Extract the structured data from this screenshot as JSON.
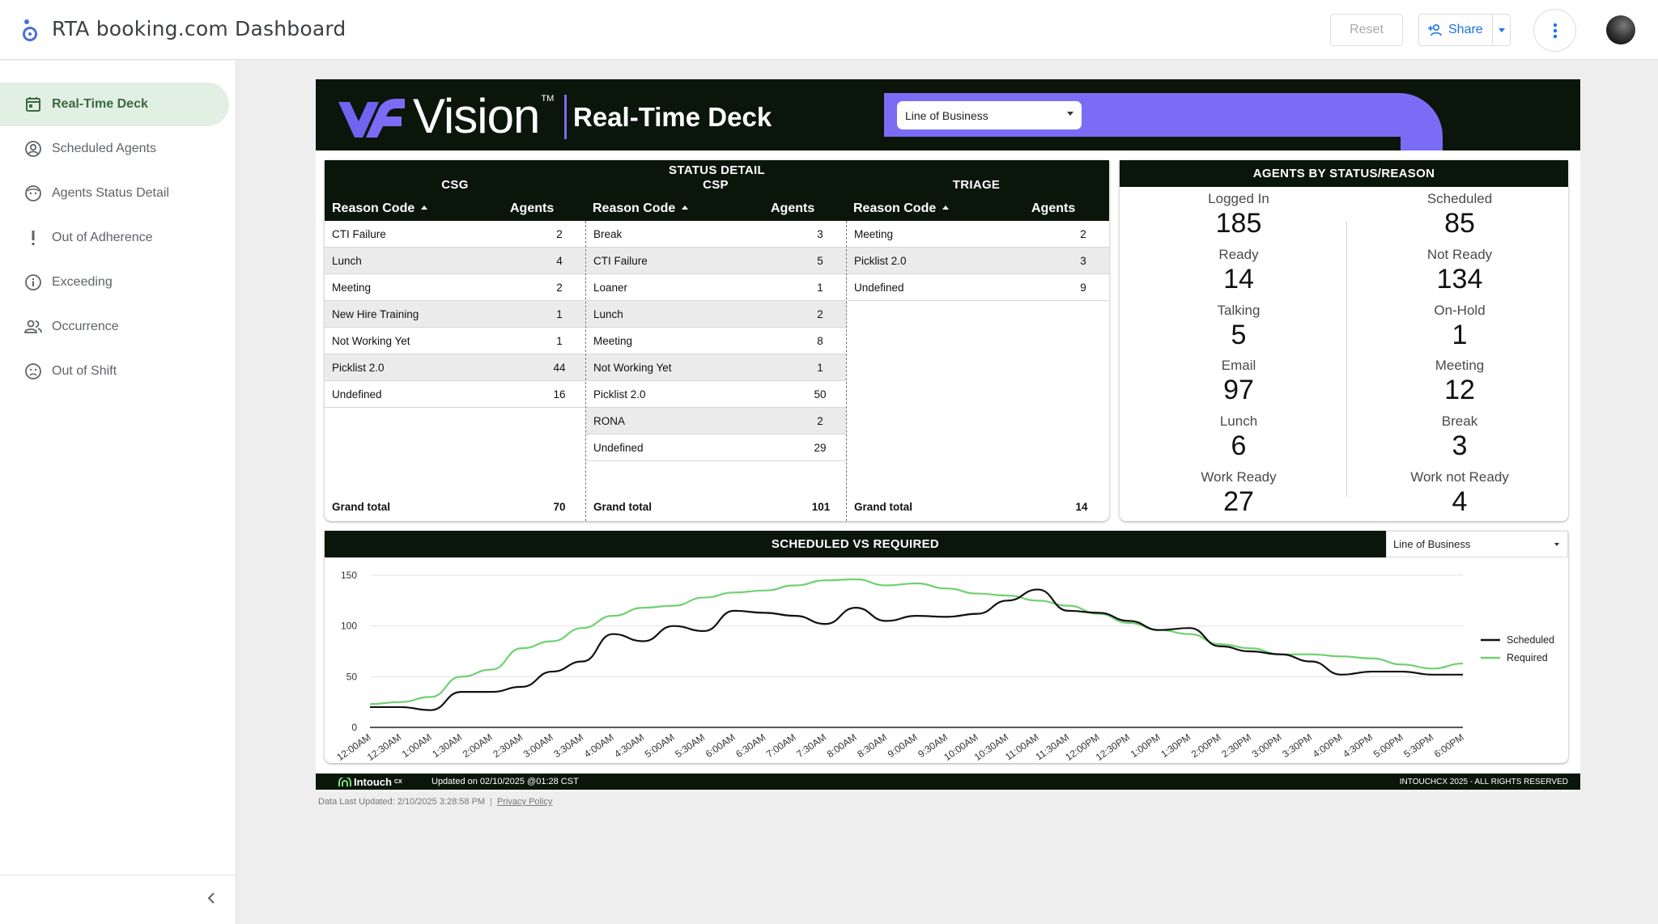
{
  "app": {
    "title": "RTA booking.com Dashboard"
  },
  "toolbar": {
    "reset_label": "Reset",
    "share_label": "Share"
  },
  "colors": {
    "accent_green_bg": "#e2efe3",
    "accent_purple": "#7b6cf6",
    "dark_band": "#0b160b",
    "share_blue": "#1a73e8"
  },
  "sidebar": {
    "items": [
      {
        "label": "Real-Time Deck",
        "icon": "calendar-icon",
        "active": true
      },
      {
        "label": "Scheduled Agents",
        "icon": "account-circle-icon"
      },
      {
        "label": "Agents Status Detail",
        "icon": "face-icon"
      },
      {
        "label": "Out of Adherence",
        "icon": "exclamation-icon"
      },
      {
        "label": "Exceeding",
        "icon": "info-icon"
      },
      {
        "label": "Occurrence",
        "icon": "people-icon"
      },
      {
        "label": "Out of Shift",
        "icon": "sad-face-icon"
      }
    ]
  },
  "report": {
    "brand_name": "Vision",
    "brand_tm": "TM",
    "deck_title": "Real-Time Deck",
    "lob_dropdown": "Line of Business",
    "status_detail": {
      "title": "STATUS DETAIL",
      "reason_header": "Reason Code",
      "agents_header": "Agents",
      "grand_total_label": "Grand total",
      "groups": [
        {
          "name": "CSG",
          "rows": [
            [
              "CTI Failure",
              "2"
            ],
            [
              "Lunch",
              "4"
            ],
            [
              "Meeting",
              "2"
            ],
            [
              "New Hire Training",
              "1"
            ],
            [
              "Not Working Yet",
              "1"
            ],
            [
              "Picklist 2.0",
              "44"
            ],
            [
              "Undefined",
              "16"
            ]
          ],
          "total": "70"
        },
        {
          "name": "CSP",
          "rows": [
            [
              "Break",
              "3"
            ],
            [
              "CTI Failure",
              "5"
            ],
            [
              "Loaner",
              "1"
            ],
            [
              "Lunch",
              "2"
            ],
            [
              "Meeting",
              "8"
            ],
            [
              "Not Working Yet",
              "1"
            ],
            [
              "Picklist 2.0",
              "50"
            ],
            [
              "RONA",
              "2"
            ],
            [
              "Undefined",
              "29"
            ]
          ],
          "total": "101"
        },
        {
          "name": "TRIAGE",
          "rows": [
            [
              "Meeting",
              "2"
            ],
            [
              "Picklist 2.0",
              "3"
            ],
            [
              "Undefined",
              "9"
            ]
          ],
          "total": "14"
        }
      ]
    },
    "agents_by_status": {
      "title": "AGENTS BY STATUS/REASON",
      "left": [
        {
          "label": "Logged In",
          "value": "185"
        },
        {
          "label": "Ready",
          "value": "14"
        },
        {
          "label": "Talking",
          "value": "5"
        },
        {
          "label": "Email",
          "value": "97"
        },
        {
          "label": "Lunch",
          "value": "6"
        },
        {
          "label": "Work Ready",
          "value": "27"
        }
      ],
      "right": [
        {
          "label": "Scheduled",
          "value": "85"
        },
        {
          "label": "Not Ready",
          "value": "134"
        },
        {
          "label": "On-Hold",
          "value": "1"
        },
        {
          "label": "Meeting",
          "value": "12"
        },
        {
          "label": "Break",
          "value": "3"
        },
        {
          "label": "Work not Ready",
          "value": "4"
        }
      ]
    },
    "chart_title": "SCHEDULED VS REQUIRED",
    "chart_lob": "Line of Business",
    "footer": {
      "brand": "Intouch",
      "brand_sup": "CX",
      "updated": "Updated on 02/10/2025 @01:28 CST",
      "rights": "INTOUCHCX 2025 - ALL RIGHTS RESERVED"
    }
  },
  "data_updated": "Data Last Updated: 2/10/2025 3:28:58 PM",
  "privacy_policy": "Privacy Policy",
  "chart_data": {
    "type": "line",
    "title": "SCHEDULED VS REQUIRED",
    "xlabel": "",
    "ylabel": "",
    "ylim": [
      0,
      150
    ],
    "yticks": [
      0,
      50,
      100,
      150
    ],
    "grid": true,
    "legend": "right",
    "x": [
      "12:00AM",
      "12:30AM",
      "1:00AM",
      "1:30AM",
      "2:00AM",
      "2:30AM",
      "3:00AM",
      "3:30AM",
      "4:00AM",
      "4:30AM",
      "5:00AM",
      "5:30AM",
      "6:00AM",
      "6:30AM",
      "7:00AM",
      "7:30AM",
      "8:00AM",
      "8:30AM",
      "9:00AM",
      "9:30AM",
      "10:00AM",
      "10:30AM",
      "11:00AM",
      "11:30AM",
      "12:00PM",
      "12:30PM",
      "1:00PM",
      "1:30PM",
      "2:00PM",
      "2:30PM",
      "3:00PM",
      "3:30PM",
      "4:00PM",
      "4:30PM",
      "5:00PM",
      "5:30PM",
      "6:00PM"
    ],
    "series": [
      {
        "name": "Scheduled",
        "color": "#111111",
        "values": [
          20,
          20,
          17,
          35,
          35,
          40,
          55,
          65,
          92,
          85,
          100,
          95,
          115,
          113,
          110,
          102,
          118,
          105,
          110,
          109,
          112,
          125,
          136,
          115,
          113,
          105,
          96,
          98,
          80,
          75,
          72,
          65,
          52,
          55,
          55,
          52,
          52
        ]
      },
      {
        "name": "Required",
        "color": "#6fd16f",
        "values": [
          23,
          25,
          30,
          50,
          57,
          78,
          85,
          98,
          110,
          118,
          120,
          128,
          133,
          135,
          140,
          145,
          146,
          140,
          142,
          137,
          132,
          130,
          125,
          120,
          112,
          103,
          96,
          92,
          82,
          78,
          72,
          72,
          70,
          68,
          62,
          58,
          63
        ]
      }
    ]
  }
}
